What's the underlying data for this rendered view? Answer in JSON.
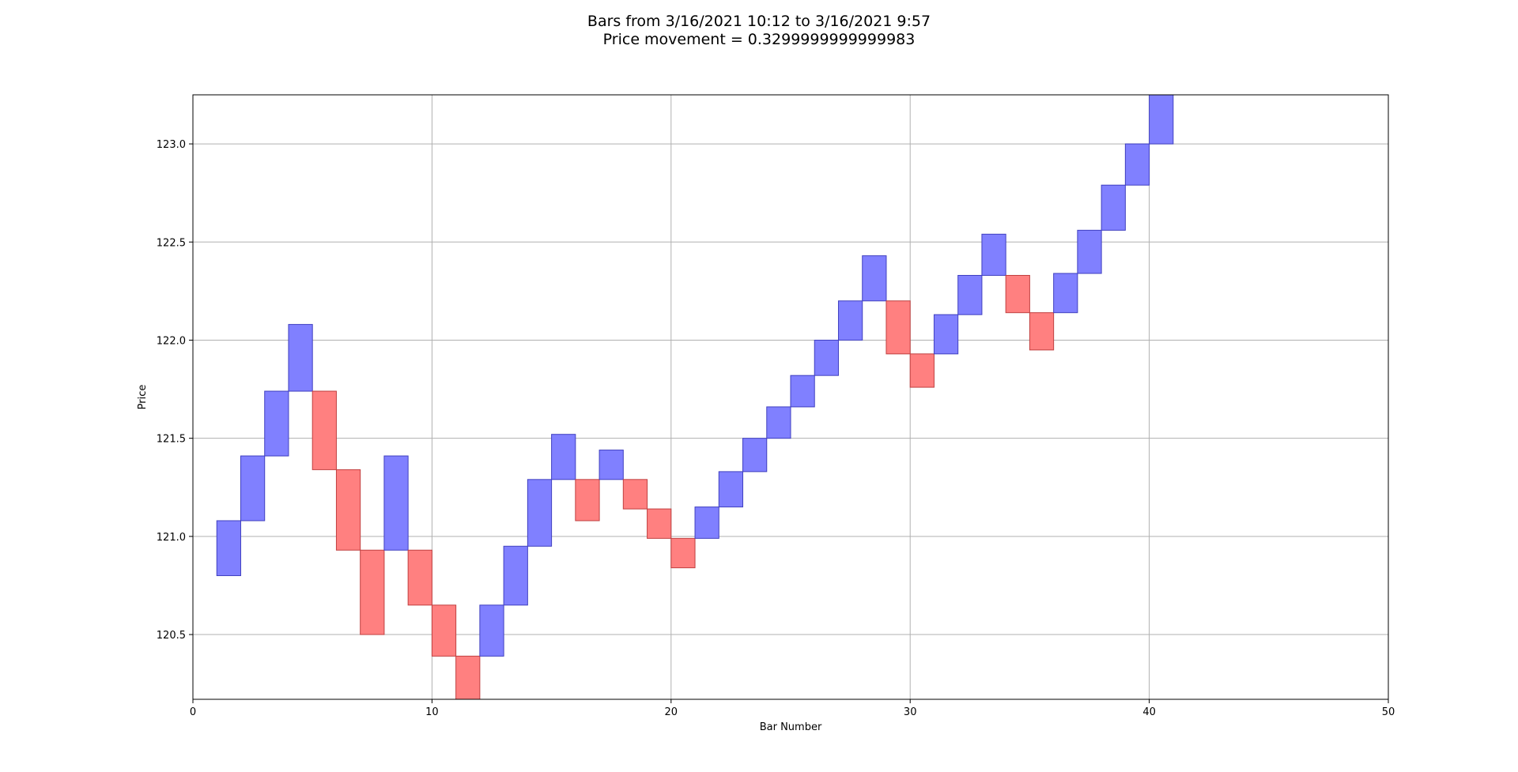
{
  "chart_data": {
    "type": "bar",
    "subtype": "renko",
    "title": "Bars from 3/16/2021 10:12 to 3/16/2021 9:57",
    "subtitle": "Price movement = 0.3299999999999983",
    "xlabel": "Bar Number",
    "ylabel": "Price",
    "xlim": [
      0,
      50
    ],
    "ylim": [
      120.17,
      123.25
    ],
    "xticks": [
      0,
      10,
      20,
      30,
      40,
      50
    ],
    "yticks": [
      120.5,
      121.0,
      121.5,
      122.0,
      122.5,
      123.0
    ],
    "ytick_labels": [
      "120.5",
      "121.0",
      "121.5",
      "122.0",
      "122.5",
      "123.0"
    ],
    "grid": true,
    "colors": {
      "up": "#8080ff",
      "up_edge": "#4040c0",
      "down": "#ff8080",
      "down_edge": "#c04040"
    },
    "bars": [
      {
        "x": 1,
        "low": 120.8,
        "high": 121.08,
        "dir": "up"
      },
      {
        "x": 2,
        "low": 121.08,
        "high": 121.41,
        "dir": "up"
      },
      {
        "x": 3,
        "low": 121.41,
        "high": 121.74,
        "dir": "up"
      },
      {
        "x": 4,
        "low": 121.74,
        "high": 122.08,
        "dir": "up"
      },
      {
        "x": 5,
        "low": 121.34,
        "high": 121.74,
        "dir": "down"
      },
      {
        "x": 6,
        "low": 120.93,
        "high": 121.34,
        "dir": "down"
      },
      {
        "x": 7,
        "low": 120.5,
        "high": 120.93,
        "dir": "down"
      },
      {
        "x": 8,
        "low": 120.93,
        "high": 121.41,
        "dir": "up"
      },
      {
        "x": 9,
        "low": 120.65,
        "high": 120.93,
        "dir": "down"
      },
      {
        "x": 10,
        "low": 120.39,
        "high": 120.65,
        "dir": "down"
      },
      {
        "x": 11,
        "low": 120.17,
        "high": 120.39,
        "dir": "down"
      },
      {
        "x": 12,
        "low": 120.39,
        "high": 120.65,
        "dir": "up"
      },
      {
        "x": 13,
        "low": 120.65,
        "high": 120.95,
        "dir": "up"
      },
      {
        "x": 14,
        "low": 120.95,
        "high": 121.29,
        "dir": "up"
      },
      {
        "x": 15,
        "low": 121.29,
        "high": 121.52,
        "dir": "up"
      },
      {
        "x": 16,
        "low": 121.08,
        "high": 121.29,
        "dir": "down"
      },
      {
        "x": 17,
        "low": 121.29,
        "high": 121.44,
        "dir": "up"
      },
      {
        "x": 18,
        "low": 121.14,
        "high": 121.29,
        "dir": "down"
      },
      {
        "x": 19,
        "low": 120.99,
        "high": 121.14,
        "dir": "down"
      },
      {
        "x": 20,
        "low": 120.84,
        "high": 120.99,
        "dir": "down"
      },
      {
        "x": 21,
        "low": 120.99,
        "high": 121.15,
        "dir": "up"
      },
      {
        "x": 22,
        "low": 121.15,
        "high": 121.33,
        "dir": "up"
      },
      {
        "x": 23,
        "low": 121.33,
        "high": 121.5,
        "dir": "up"
      },
      {
        "x": 24,
        "low": 121.5,
        "high": 121.66,
        "dir": "up"
      },
      {
        "x": 25,
        "low": 121.66,
        "high": 121.82,
        "dir": "up"
      },
      {
        "x": 26,
        "low": 121.82,
        "high": 122.0,
        "dir": "up"
      },
      {
        "x": 27,
        "low": 122.0,
        "high": 122.2,
        "dir": "up"
      },
      {
        "x": 28,
        "low": 122.2,
        "high": 122.43,
        "dir": "up"
      },
      {
        "x": 29,
        "low": 121.93,
        "high": 122.2,
        "dir": "down"
      },
      {
        "x": 30,
        "low": 121.76,
        "high": 121.93,
        "dir": "down"
      },
      {
        "x": 31,
        "low": 121.93,
        "high": 122.13,
        "dir": "up"
      },
      {
        "x": 32,
        "low": 122.13,
        "high": 122.33,
        "dir": "up"
      },
      {
        "x": 33,
        "low": 122.33,
        "high": 122.54,
        "dir": "up"
      },
      {
        "x": 34,
        "low": 122.14,
        "high": 122.33,
        "dir": "down"
      },
      {
        "x": 35,
        "low": 121.95,
        "high": 122.14,
        "dir": "down"
      },
      {
        "x": 36,
        "low": 122.14,
        "high": 122.34,
        "dir": "up"
      },
      {
        "x": 37,
        "low": 122.34,
        "high": 122.56,
        "dir": "up"
      },
      {
        "x": 38,
        "low": 122.56,
        "high": 122.79,
        "dir": "up"
      },
      {
        "x": 39,
        "low": 122.79,
        "high": 123.0,
        "dir": "up"
      },
      {
        "x": 40,
        "low": 123.0,
        "high": 123.25,
        "dir": "up"
      }
    ]
  }
}
